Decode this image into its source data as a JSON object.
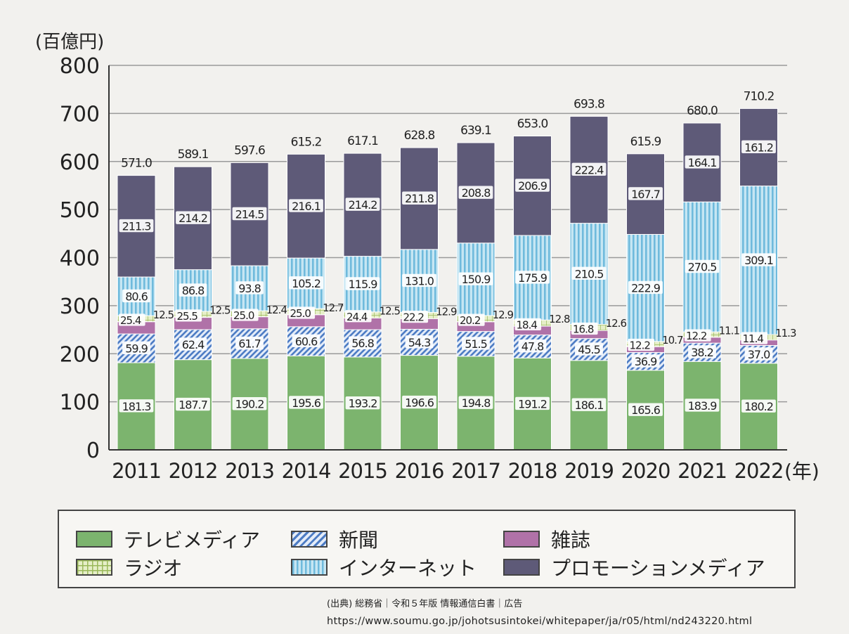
{
  "chart_data": {
    "type": "bar",
    "stacked": true,
    "unit_label": "(百億円)",
    "x_unit_label": "(年)",
    "ylim": [
      0,
      800
    ],
    "yticks": [
      "0",
      "100",
      "200",
      "300",
      "400",
      "500",
      "600",
      "700",
      "800"
    ],
    "grid": true,
    "categories": [
      "2011",
      "2012",
      "2013",
      "2014",
      "2015",
      "2016",
      "2017",
      "2018",
      "2019",
      "2020",
      "2021",
      "2022"
    ],
    "totals": [
      571.0,
      589.1,
      597.6,
      615.2,
      617.1,
      628.8,
      639.1,
      653.0,
      693.8,
      615.9,
      680.0,
      710.2
    ],
    "total_labels": [
      "571.0",
      "589.1",
      "597.6",
      "615.2",
      "617.1",
      "628.8",
      "639.1",
      "653.0",
      "693.8",
      "615.9",
      "680.0",
      "710.2"
    ],
    "series": [
      {
        "name": "テレビメディア",
        "color": "#7cb46e",
        "pattern": "solid",
        "values": [
          181.3,
          187.7,
          190.2,
          195.6,
          193.2,
          196.6,
          194.8,
          191.2,
          186.1,
          165.6,
          183.9,
          180.2
        ],
        "labels": [
          "181.3",
          "187.7",
          "190.2",
          "195.6",
          "193.2",
          "196.6",
          "194.8",
          "191.2",
          "186.1",
          "165.6",
          "183.9",
          "180.2"
        ]
      },
      {
        "name": "新聞",
        "color": "#5a87c8",
        "pattern": "diagonal",
        "values": [
          59.9,
          62.4,
          61.7,
          60.6,
          56.8,
          54.3,
          51.5,
          47.8,
          45.5,
          36.9,
          38.2,
          37.0
        ],
        "labels": [
          "59.9",
          "62.4",
          "61.7",
          "60.6",
          "56.8",
          "54.3",
          "51.5",
          "47.8",
          "45.5",
          "36.9",
          "38.2",
          "37.0"
        ]
      },
      {
        "name": "雑誌",
        "color": "#b072a8",
        "pattern": "solid",
        "values": [
          25.4,
          25.5,
          25.0,
          25.0,
          24.4,
          22.2,
          20.2,
          18.4,
          16.8,
          12.2,
          12.2,
          11.4
        ],
        "labels": [
          "25.4",
          "25.5",
          "25.0",
          "25.0",
          "24.4",
          "22.2",
          "20.2",
          "18.4",
          "16.8",
          "12.2",
          "12.2",
          "11.4"
        ]
      },
      {
        "name": "ラジオ",
        "color": "#cfe0a4",
        "pattern": "grid",
        "values": [
          12.5,
          12.5,
          12.4,
          12.7,
          12.5,
          12.9,
          12.9,
          12.8,
          12.6,
          10.7,
          11.1,
          11.3
        ],
        "labels": [
          "12.5",
          "12.5",
          "12.4",
          "12.7",
          "12.5",
          "12.9",
          "12.9",
          "12.8",
          "12.6",
          "10.7",
          "11.1",
          "11.3"
        ]
      },
      {
        "name": "インターネット",
        "color": "#9ed2e8",
        "pattern": "vertical",
        "values": [
          80.6,
          86.8,
          93.8,
          105.2,
          115.9,
          131.0,
          150.9,
          175.9,
          210.5,
          222.9,
          270.5,
          309.1
        ],
        "labels": [
          "80.6",
          "86.8",
          "93.8",
          "105.2",
          "115.9",
          "131.0",
          "150.9",
          "175.9",
          "210.5",
          "222.9",
          "270.5",
          "309.1"
        ]
      },
      {
        "name": "プロモーションメディア",
        "color": "#5e5a78",
        "pattern": "solid",
        "values": [
          211.3,
          214.2,
          214.5,
          216.1,
          214.2,
          211.8,
          208.8,
          206.9,
          222.4,
          167.7,
          164.1,
          161.2
        ],
        "labels": [
          "211.3",
          "214.2",
          "214.5",
          "216.1",
          "214.2",
          "211.8",
          "208.8",
          "206.9",
          "222.4",
          "167.7",
          "164.1",
          "161.2"
        ]
      }
    ]
  },
  "legend": {
    "items": [
      {
        "label": "テレビメディア",
        "swatch": "tv"
      },
      {
        "label": "新聞",
        "swatch": "newspaper"
      },
      {
        "label": "雑誌",
        "swatch": "magazine"
      },
      {
        "label": "ラジオ",
        "swatch": "radio"
      },
      {
        "label": "インターネット",
        "swatch": "internet"
      },
      {
        "label": "プロモーションメディア",
        "swatch": "promotion"
      }
    ]
  },
  "source": {
    "credit": "(出典) 総務省｜令和５年版 情報通信白書｜広告",
    "url": "https://www.soumu.go.jp/johotsusintokei/whitepaper/ja/r05/html/nd243220.html"
  }
}
